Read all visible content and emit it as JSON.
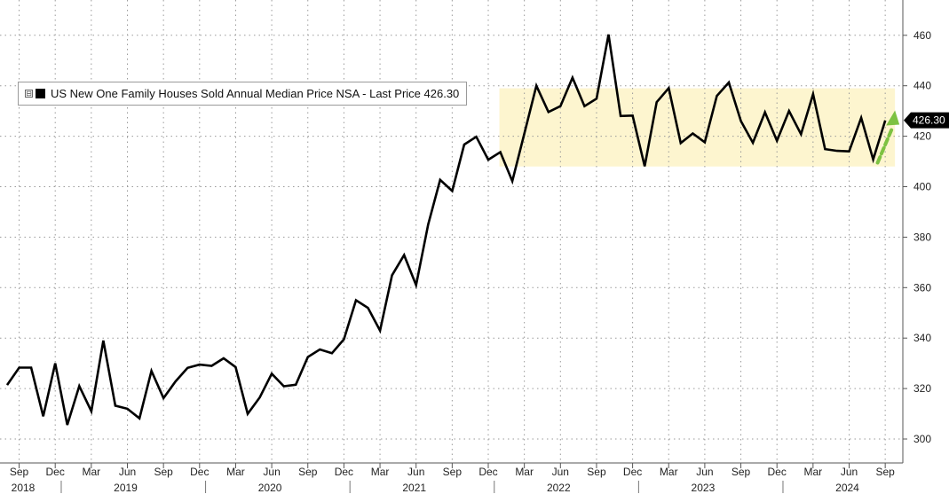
{
  "legend": {
    "toggle_glyph": "⊟",
    "label": "US New One Family Houses Sold Annual Median Price NSA - Last Price 426.30"
  },
  "last_price_label": "426.30",
  "colors": {
    "line": "#000000",
    "band": "#fdf5cf",
    "arrow": "#7dc242",
    "grid": "#9a9a9a",
    "last_label_bg": "#000000"
  },
  "chart_data": {
    "type": "line",
    "title": "",
    "xlabel": "",
    "ylabel": "",
    "ylim": [
      292,
      468
    ],
    "y_ticks": [
      300,
      320,
      340,
      360,
      380,
      400,
      420,
      440,
      460
    ],
    "grid": true,
    "legend_position": "top-left",
    "x_month_ticks": [
      "Sep",
      "Dec",
      "Mar",
      "Jun",
      "Sep",
      "Dec",
      "Mar",
      "Jun",
      "Sep",
      "Dec",
      "Mar",
      "Jun",
      "Sep",
      "Dec",
      "Mar",
      "Jun",
      "Sep",
      "Dec",
      "Mar",
      "Jun",
      "Sep",
      "Dec",
      "Mar",
      "Jun",
      "Sep"
    ],
    "x_year_labels": [
      "2018",
      "2019",
      "2020",
      "2021",
      "2022",
      "2023",
      "2024"
    ],
    "series": [
      {
        "name": "US New One Family Houses Sold Annual Median Price NSA",
        "x": [
          "2018-08",
          "2018-09",
          "2018-10",
          "2018-11",
          "2018-12",
          "2019-01",
          "2019-02",
          "2019-03",
          "2019-04",
          "2019-05",
          "2019-06",
          "2019-07",
          "2019-08",
          "2019-09",
          "2019-10",
          "2019-11",
          "2019-12",
          "2020-01",
          "2020-02",
          "2020-03",
          "2020-04",
          "2020-05",
          "2020-06",
          "2020-07",
          "2020-08",
          "2020-09",
          "2020-10",
          "2020-11",
          "2020-12",
          "2021-01",
          "2021-02",
          "2021-03",
          "2021-04",
          "2021-05",
          "2021-06",
          "2021-07",
          "2021-08",
          "2021-09",
          "2021-10",
          "2021-11",
          "2021-12",
          "2022-01",
          "2022-02",
          "2022-03",
          "2022-04",
          "2022-05",
          "2022-06",
          "2022-07",
          "2022-08",
          "2022-09",
          "2022-10",
          "2022-11",
          "2022-12",
          "2023-01",
          "2023-02",
          "2023-03",
          "2023-04",
          "2023-05",
          "2023-06",
          "2023-07",
          "2023-08",
          "2023-09",
          "2023-10",
          "2023-11",
          "2023-12",
          "2024-01",
          "2024-02",
          "2024-03",
          "2024-04",
          "2024-05",
          "2024-06",
          "2024-07",
          "2024-08",
          "2024-09"
        ],
        "values": [
          321.4,
          328.3,
          328.3,
          309.0,
          330.0,
          305.6,
          321.0,
          311.0,
          339.0,
          313.2,
          312.0,
          308.2,
          327.0,
          316.2,
          322.8,
          328.2,
          329.5,
          329.0,
          332.0,
          328.5,
          310.0,
          316.5,
          325.9,
          320.9,
          321.5,
          332.5,
          335.5,
          334.0,
          339.5,
          355.0,
          352.0,
          343.0,
          364.9,
          372.9,
          361.0,
          385.0,
          402.7,
          398.3,
          416.7,
          419.8,
          410.7,
          413.7,
          402.2,
          421.0,
          440.0,
          429.6,
          431.9,
          443.2,
          431.9,
          434.9,
          460.3,
          428.0,
          428.2,
          408.1,
          433.5,
          439.1,
          417.3,
          421.1,
          417.6,
          436.0,
          441.3,
          426.0,
          417.4,
          429.5,
          418.2,
          430.0,
          420.8,
          436.7,
          414.9,
          414.2,
          414.0,
          427.3,
          410.8,
          426.3
        ]
      }
    ],
    "annotations": {
      "band": {
        "x_start": "2022-01",
        "x_end": "2024-09",
        "y_low": 408,
        "y_high": 439
      },
      "arrow": {
        "x_from": "2024-08",
        "y_from": 409.5,
        "x_to": "2024-09",
        "y_to": 426
      }
    }
  }
}
